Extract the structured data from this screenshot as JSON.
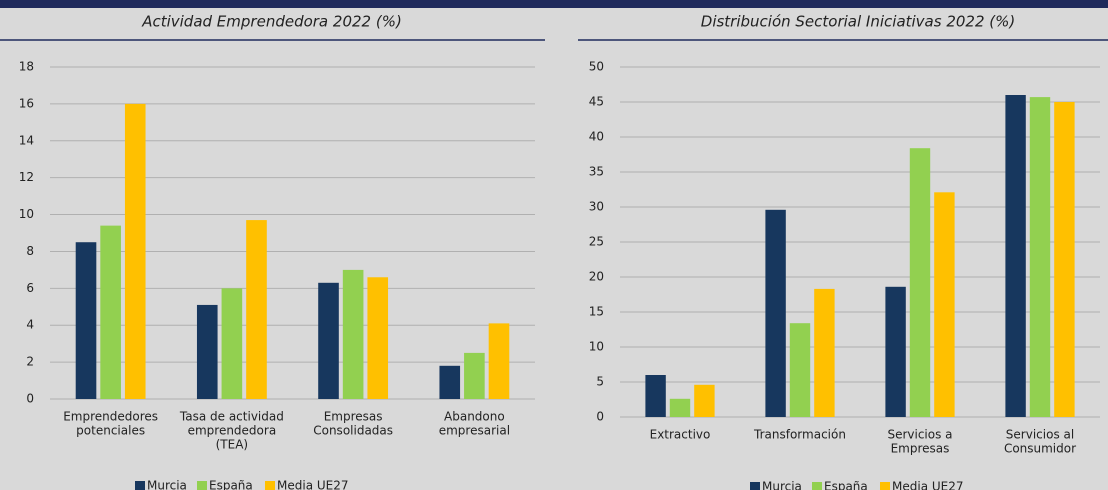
{
  "chart_data": [
    {
      "type": "bar",
      "title": "Actividad Emprendedora 2022 (%)",
      "categories": [
        [
          "Emprendedores",
          "potenciales"
        ],
        [
          "Tasa de actividad",
          "emprendedora",
          "(TEA)"
        ],
        [
          "Empresas",
          "Consolidadas"
        ],
        [
          "Abandono",
          "empresarial"
        ]
      ],
      "series": [
        {
          "name": "Murcia",
          "color": "#17375e",
          "values": [
            8.5,
            5.1,
            6.3,
            1.8
          ]
        },
        {
          "name": "España",
          "color": "#92d050",
          "values": [
            9.4,
            6.0,
            7.0,
            2.5
          ]
        },
        {
          "name": "Media UE27",
          "color": "#ffc000",
          "values": [
            16.0,
            9.7,
            6.6,
            4.1
          ]
        }
      ],
      "ylim": [
        0,
        18
      ],
      "yticks": [
        0,
        2,
        4,
        6,
        8,
        10,
        12,
        14,
        16,
        18
      ],
      "grid": true,
      "legend": "bottom"
    },
    {
      "type": "bar",
      "title": "Distribución Sectorial Iniciativas 2022 (%)",
      "categories": [
        [
          "Extractivo"
        ],
        [
          "Transformación"
        ],
        [
          "Servicios a",
          "Empresas"
        ],
        [
          "Servicios al",
          "Consumidor"
        ]
      ],
      "series": [
        {
          "name": "Murcia",
          "color": "#17375e",
          "values": [
            6.0,
            29.6,
            18.6,
            46.0
          ]
        },
        {
          "name": "España",
          "color": "#92d050",
          "values": [
            2.6,
            13.4,
            38.4,
            45.7
          ]
        },
        {
          "name": "Media UE27",
          "color": "#ffc000",
          "values": [
            4.6,
            18.3,
            32.1,
            45.0
          ]
        }
      ],
      "ylim": [
        0,
        50
      ],
      "yticks": [
        0,
        5,
        10,
        15,
        20,
        25,
        30,
        35,
        40,
        45,
        50
      ],
      "grid": true,
      "legend": "bottom"
    }
  ]
}
